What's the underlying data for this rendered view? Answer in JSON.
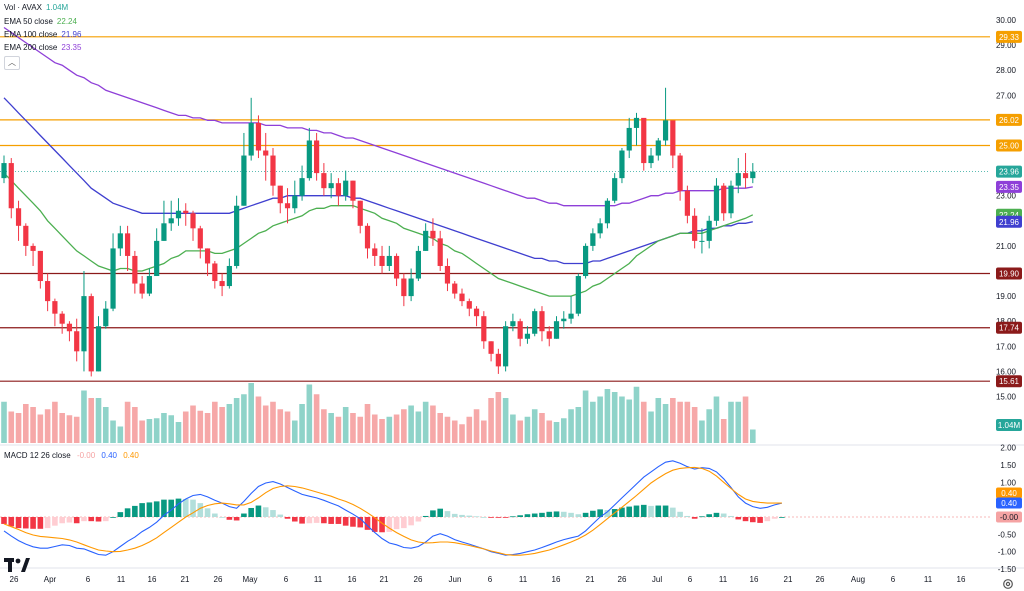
{
  "legend": {
    "vol": {
      "label": "Vol · AVAX",
      "value": "1.04M",
      "color": "#26a69a"
    },
    "ema50": {
      "label": "EMA 50 close",
      "value": "22.24",
      "color": "#4caf50"
    },
    "ema100": {
      "label": "EMA 100 close",
      "value": "21.96",
      "color": "#3f3fcf"
    },
    "ema200": {
      "label": "EMA 200 close",
      "value": "23.35",
      "color": "#8e3fd8"
    },
    "macd": {
      "label": "MACD 12 26 close",
      "hist": "-0.00",
      "macd": "0.40",
      "signal": "0.40",
      "hist_color": "#f5a3a3",
      "macd_color": "#2962ff",
      "signal_color": "#ff9800"
    }
  },
  "chart_data": {
    "type": "candlestick",
    "price_axis": {
      "ticks": [
        "30.00",
        "29.00",
        "28.00",
        "27.00",
        "25.00",
        "23.00",
        "22.00",
        "21.00",
        "19.00",
        "18.00",
        "17.00",
        "16.00",
        "15.00"
      ]
    },
    "macd_axis": {
      "ticks": [
        "2.00",
        "1.50",
        "1.00",
        "0.50",
        "-0.50",
        "-1.00",
        "-1.50"
      ]
    },
    "x_labels": [
      "26",
      "Apr",
      "6",
      "11",
      "16",
      "21",
      "26",
      "May",
      "6",
      "11",
      "16",
      "21",
      "26",
      "Jun",
      "6",
      "11",
      "16",
      "21",
      "26",
      "Jul",
      "6",
      "11",
      "16",
      "21",
      "26",
      "Aug",
      "6",
      "11",
      "16"
    ],
    "levels": [
      {
        "value": 29.33,
        "label": "29.33",
        "color": "#f59f00"
      },
      {
        "value": 26.02,
        "label": "26.02",
        "color": "#f59f00"
      },
      {
        "value": 25.0,
        "label": "25.00",
        "color": "#f59f00"
      },
      {
        "value": 19.9,
        "label": "19.90",
        "color": "#8b1a1a"
      },
      {
        "value": 17.74,
        "label": "17.74",
        "color": "#8b1a1a"
      },
      {
        "value": 15.61,
        "label": "15.61",
        "color": "#8b1a1a"
      }
    ],
    "price_badges": [
      {
        "value": 23.96,
        "label": "23.96",
        "color": "#26a69a"
      },
      {
        "value": 23.35,
        "label": "23.35",
        "color": "#8e3fd8"
      },
      {
        "value": 22.24,
        "label": "22.24",
        "color": "#4caf50"
      },
      {
        "value": 21.96,
        "label": "21.96",
        "color": "#3f3fcf"
      }
    ],
    "volume_badge": {
      "label": "1.04M",
      "color": "#26a69a"
    },
    "macd_badges": [
      {
        "value": 0.4,
        "label": "0.40",
        "color": "#ff9800"
      },
      {
        "value": 0.4,
        "label": "0.40",
        "color": "#2962ff"
      },
      {
        "value": 0.0,
        "label": "-0.00",
        "color": "#f5a3a3"
      }
    ],
    "closes": [
      24.3,
      22.5,
      21.8,
      21.0,
      20.8,
      19.6,
      18.8,
      18.3,
      17.9,
      17.6,
      16.8,
      19.0,
      16.0,
      17.8,
      18.5,
      20.9,
      21.5,
      20.6,
      19.5,
      19.1,
      19.8,
      21.2,
      21.9,
      22.1,
      22.4,
      22.3,
      21.7,
      20.9,
      20.3,
      19.6,
      19.4,
      20.2,
      22.6,
      24.6,
      25.9,
      24.8,
      24.6,
      23.4,
      22.7,
      22.5,
      23.0,
      23.7,
      25.2,
      23.9,
      23.3,
      23.5,
      23.0,
      23.6,
      22.8,
      21.8,
      20.9,
      20.6,
      20.2,
      20.6,
      19.7,
      19.0,
      19.7,
      20.8,
      21.6,
      21.3,
      20.2,
      19.5,
      19.1,
      18.8,
      18.5,
      18.2,
      17.2,
      16.7,
      16.2,
      17.8,
      18.0,
      17.3,
      17.5,
      18.4,
      17.6,
      17.3,
      18.0,
      18.1,
      18.3,
      19.8,
      21.0,
      21.5,
      21.9,
      22.8,
      23.7,
      24.8,
      25.7,
      26.1,
      24.3,
      24.6,
      25.2,
      26.0,
      24.6,
      23.2,
      22.2,
      21.2,
      21.2,
      22.0,
      23.4,
      22.3,
      23.4,
      23.9,
      23.7,
      23.96
    ],
    "ranges": [
      [
        23.5,
        24.6
      ],
      [
        22.1,
        24.5
      ],
      [
        21.2,
        22.8
      ],
      [
        20.6,
        21.9
      ],
      [
        20.2,
        21.1
      ],
      [
        19.3,
        20.8
      ],
      [
        18.4,
        19.9
      ],
      [
        17.8,
        18.9
      ],
      [
        17.5,
        18.4
      ],
      [
        17.2,
        18.0
      ],
      [
        16.4,
        18.1
      ],
      [
        16.0,
        20.0
      ],
      [
        15.8,
        19.1
      ],
      [
        16.0,
        18.2
      ],
      [
        17.7,
        18.8
      ],
      [
        18.4,
        21.5
      ],
      [
        20.6,
        21.8
      ],
      [
        20.0,
        21.8
      ],
      [
        19.1,
        20.8
      ],
      [
        18.9,
        19.8
      ],
      [
        19.0,
        20.1
      ],
      [
        19.8,
        21.7
      ],
      [
        21.2,
        22.8
      ],
      [
        21.6,
        22.8
      ],
      [
        21.8,
        22.9
      ],
      [
        21.8,
        22.7
      ],
      [
        21.2,
        22.4
      ],
      [
        20.5,
        21.8
      ],
      [
        19.8,
        20.9
      ],
      [
        19.3,
        20.4
      ],
      [
        19.0,
        19.9
      ],
      [
        19.3,
        20.5
      ],
      [
        20.1,
        23.0
      ],
      [
        22.6,
        25.5
      ],
      [
        24.4,
        26.9
      ],
      [
        24.5,
        26.2
      ],
      [
        23.6,
        25.5
      ],
      [
        23.0,
        24.9
      ],
      [
        22.3,
        23.4
      ],
      [
        21.9,
        23.3
      ],
      [
        22.3,
        23.6
      ],
      [
        22.8,
        24.2
      ],
      [
        23.6,
        25.7
      ],
      [
        23.6,
        25.5
      ],
      [
        23.0,
        24.3
      ],
      [
        22.9,
        23.9
      ],
      [
        22.6,
        23.7
      ],
      [
        22.8,
        24.0
      ],
      [
        22.5,
        23.6
      ],
      [
        21.5,
        22.8
      ],
      [
        20.5,
        21.9
      ],
      [
        20.2,
        21.1
      ],
      [
        19.9,
        21.0
      ],
      [
        20.0,
        21.0
      ],
      [
        19.4,
        20.7
      ],
      [
        18.6,
        19.9
      ],
      [
        18.8,
        20.1
      ],
      [
        19.6,
        21.0
      ],
      [
        20.8,
        21.9
      ],
      [
        21.0,
        22.1
      ],
      [
        20.0,
        21.6
      ],
      [
        19.2,
        20.5
      ],
      [
        18.9,
        19.6
      ],
      [
        18.6,
        19.3
      ],
      [
        18.2,
        18.9
      ],
      [
        17.8,
        18.6
      ],
      [
        16.9,
        18.4
      ],
      [
        16.4,
        17.2
      ],
      [
        15.9,
        16.9
      ],
      [
        16.0,
        18.0
      ],
      [
        17.6,
        18.3
      ],
      [
        17.0,
        18.1
      ],
      [
        17.1,
        17.8
      ],
      [
        17.4,
        18.5
      ],
      [
        17.2,
        18.6
      ],
      [
        17.0,
        17.8
      ],
      [
        17.3,
        18.2
      ],
      [
        17.7,
        18.4
      ],
      [
        17.9,
        19.0
      ],
      [
        18.2,
        19.9
      ],
      [
        19.7,
        21.1
      ],
      [
        20.8,
        21.7
      ],
      [
        21.3,
        22.1
      ],
      [
        21.7,
        22.9
      ],
      [
        22.7,
        23.9
      ],
      [
        23.5,
        24.9
      ],
      [
        24.5,
        26.1
      ],
      [
        25.0,
        26.3
      ],
      [
        24.0,
        25.8
      ],
      [
        24.1,
        24.9
      ],
      [
        24.4,
        25.3
      ],
      [
        25.0,
        27.3
      ],
      [
        24.1,
        25.2
      ],
      [
        22.8,
        24.7
      ],
      [
        21.9,
        23.4
      ],
      [
        20.9,
        22.5
      ],
      [
        20.7,
        21.7
      ],
      [
        20.9,
        22.2
      ],
      [
        21.8,
        23.7
      ],
      [
        22.0,
        23.5
      ],
      [
        22.1,
        23.6
      ],
      [
        23.1,
        24.5
      ],
      [
        23.3,
        24.7
      ],
      [
        23.5,
        24.3
      ]
    ],
    "ema50": [
      23.9,
      23.6,
      23.3,
      23.0,
      22.7,
      22.4,
      22.0,
      21.7,
      21.4,
      21.1,
      20.8,
      20.6,
      20.4,
      20.2,
      20.1,
      20.0,
      20.1,
      20.1,
      20.0,
      20.0,
      20.1,
      20.2,
      20.3,
      20.5,
      20.6,
      20.8,
      20.8,
      20.8,
      20.8,
      20.7,
      20.7,
      20.8,
      20.9,
      21.1,
      21.3,
      21.5,
      21.6,
      21.8,
      21.9,
      22.0,
      22.1,
      22.2,
      22.4,
      22.5,
      22.5,
      22.6,
      22.6,
      22.6,
      22.6,
      22.5,
      22.4,
      22.3,
      22.1,
      22.0,
      21.9,
      21.7,
      21.6,
      21.5,
      21.4,
      21.3,
      21.1,
      21.0,
      20.8,
      20.7,
      20.5,
      20.3,
      20.1,
      19.9,
      19.7,
      19.6,
      19.5,
      19.4,
      19.3,
      19.2,
      19.1,
      19.0,
      19.0,
      19.0,
      19.0,
      19.1,
      19.2,
      19.4,
      19.5,
      19.7,
      19.9,
      20.1,
      20.3,
      20.6,
      20.8,
      21.0,
      21.2,
      21.3,
      21.4,
      21.5,
      21.5,
      21.5,
      21.5,
      21.6,
      21.7,
      21.8,
      21.9,
      22.0,
      22.1,
      22.24
    ],
    "ema100": [
      26.9,
      26.6,
      26.3,
      26.0,
      25.7,
      25.4,
      25.1,
      24.8,
      24.5,
      24.2,
      23.9,
      23.6,
      23.3,
      23.1,
      22.9,
      22.7,
      22.6,
      22.5,
      22.4,
      22.3,
      22.3,
      22.3,
      22.3,
      22.3,
      22.3,
      22.3,
      22.3,
      22.3,
      22.3,
      22.3,
      22.3,
      22.3,
      22.4,
      22.5,
      22.6,
      22.7,
      22.8,
      22.9,
      22.9,
      23.0,
      23.0,
      23.0,
      23.0,
      23.0,
      23.0,
      23.0,
      23.0,
      23.0,
      22.9,
      22.9,
      22.8,
      22.7,
      22.6,
      22.5,
      22.4,
      22.3,
      22.2,
      22.1,
      22.0,
      21.9,
      21.8,
      21.7,
      21.6,
      21.5,
      21.4,
      21.3,
      21.2,
      21.1,
      21.0,
      20.9,
      20.8,
      20.7,
      20.6,
      20.5,
      20.5,
      20.4,
      20.4,
      20.3,
      20.3,
      20.3,
      20.3,
      20.4,
      20.4,
      20.5,
      20.6,
      20.7,
      20.8,
      20.9,
      21.0,
      21.1,
      21.2,
      21.3,
      21.4,
      21.5,
      21.5,
      21.6,
      21.6,
      21.7,
      21.7,
      21.8,
      21.8,
      21.9,
      21.9,
      21.96
    ],
    "ema200": [
      29.7,
      29.5,
      29.3,
      29.1,
      28.9,
      28.7,
      28.5,
      28.3,
      28.2,
      28.0,
      27.8,
      27.7,
      27.5,
      27.4,
      27.2,
      27.1,
      27.0,
      26.9,
      26.8,
      26.7,
      26.6,
      26.5,
      26.4,
      26.3,
      26.2,
      26.2,
      26.1,
      26.1,
      26.0,
      26.0,
      25.9,
      25.9,
      25.9,
      25.9,
      25.9,
      25.9,
      25.8,
      25.8,
      25.8,
      25.7,
      25.7,
      25.7,
      25.6,
      25.6,
      25.5,
      25.5,
      25.4,
      25.3,
      25.3,
      25.2,
      25.1,
      25.0,
      24.9,
      24.8,
      24.7,
      24.6,
      24.5,
      24.4,
      24.3,
      24.2,
      24.1,
      24.0,
      23.9,
      23.8,
      23.7,
      23.6,
      23.5,
      23.4,
      23.3,
      23.2,
      23.1,
      23.0,
      22.9,
      22.9,
      22.8,
      22.7,
      22.7,
      22.6,
      22.6,
      22.6,
      22.6,
      22.6,
      22.6,
      22.6,
      22.6,
      22.7,
      22.7,
      22.8,
      22.9,
      23.0,
      23.0,
      23.1,
      23.1,
      23.2,
      23.2,
      23.2,
      23.2,
      23.2,
      23.2,
      23.3,
      23.3,
      23.3,
      23.3,
      23.35
    ],
    "volumes": [
      0.55,
      0.42,
      0.4,
      0.52,
      0.48,
      0.38,
      0.45,
      0.55,
      0.4,
      0.37,
      0.35,
      0.7,
      0.6,
      0.6,
      0.48,
      0.3,
      0.22,
      0.55,
      0.48,
      0.3,
      0.32,
      0.33,
      0.4,
      0.37,
      0.28,
      0.42,
      0.5,
      0.43,
      0.4,
      0.55,
      0.48,
      0.52,
      0.6,
      0.65,
      0.8,
      0.62,
      0.5,
      0.55,
      0.45,
      0.42,
      0.3,
      0.52,
      0.78,
      0.65,
      0.45,
      0.4,
      0.35,
      0.48,
      0.4,
      0.35,
      0.52,
      0.38,
      0.32,
      0.35,
      0.38,
      0.45,
      0.5,
      0.42,
      0.55,
      0.5,
      0.4,
      0.35,
      0.3,
      0.25,
      0.35,
      0.45,
      0.3,
      0.6,
      0.68,
      0.6,
      0.38,
      0.3,
      0.35,
      0.45,
      0.4,
      0.3,
      0.28,
      0.33,
      0.45,
      0.48,
      0.7,
      0.55,
      0.62,
      0.72,
      0.68,
      0.62,
      0.58,
      0.75,
      0.55,
      0.42,
      0.6,
      0.52,
      0.6,
      0.55,
      0.55,
      0.48,
      0.3,
      0.45,
      0.62,
      0.32,
      0.55,
      0.55,
      0.62,
      0.18
    ],
    "macd": [
      -0.4,
      -0.55,
      -0.68,
      -0.78,
      -0.86,
      -0.9,
      -0.9,
      -0.85,
      -0.8,
      -0.82,
      -0.9,
      -0.92,
      -1.0,
      -1.08,
      -1.1,
      -1.0,
      -0.85,
      -0.7,
      -0.58,
      -0.42,
      -0.3,
      -0.15,
      0.05,
      0.2,
      0.38,
      0.52,
      0.62,
      0.65,
      0.58,
      0.48,
      0.4,
      0.3,
      0.25,
      0.45,
      0.68,
      0.88,
      0.98,
      1.02,
      0.95,
      0.85,
      0.75,
      0.65,
      0.6,
      0.55,
      0.48,
      0.4,
      0.32,
      0.2,
      0.08,
      -0.05,
      -0.25,
      -0.45,
      -0.62,
      -0.75,
      -0.8,
      -0.88,
      -0.9,
      -0.85,
      -0.72,
      -0.55,
      -0.48,
      -0.55,
      -0.65,
      -0.72,
      -0.78,
      -0.85,
      -0.92,
      -1.0,
      -1.05,
      -1.1,
      -1.08,
      -1.05,
      -1.0,
      -0.95,
      -0.88,
      -0.8,
      -0.72,
      -0.65,
      -0.6,
      -0.55,
      -0.4,
      -0.2,
      0.0,
      0.15,
      0.35,
      0.55,
      0.75,
      0.95,
      1.15,
      1.3,
      1.45,
      1.58,
      1.62,
      1.55,
      1.45,
      1.38,
      1.42,
      1.4,
      1.3,
      1.1,
      0.85,
      0.58,
      0.4,
      0.3,
      0.25,
      0.28,
      0.35,
      0.4
    ],
    "signal": [
      -0.2,
      -0.28,
      -0.36,
      -0.45,
      -0.52,
      -0.56,
      -0.58,
      -0.6,
      -0.62,
      -0.66,
      -0.72,
      -0.8,
      -0.88,
      -0.95,
      -0.98,
      -1.0,
      -0.99,
      -0.95,
      -0.9,
      -0.82,
      -0.72,
      -0.6,
      -0.45,
      -0.3,
      -0.15,
      0.0,
      0.12,
      0.25,
      0.33,
      0.38,
      0.4,
      0.38,
      0.35,
      0.35,
      0.42,
      0.55,
      0.7,
      0.82,
      0.88,
      0.9,
      0.88,
      0.84,
      0.78,
      0.72,
      0.66,
      0.6,
      0.52,
      0.45,
      0.36,
      0.25,
      0.12,
      -0.02,
      -0.18,
      -0.32,
      -0.45,
      -0.56,
      -0.66,
      -0.72,
      -0.75,
      -0.74,
      -0.72,
      -0.72,
      -0.74,
      -0.78,
      -0.82,
      -0.87,
      -0.92,
      -0.98,
      -1.03,
      -1.08,
      -1.1,
      -1.1,
      -1.08,
      -1.05,
      -1.0,
      -0.95,
      -0.88,
      -0.8,
      -0.72,
      -0.63,
      -0.52,
      -0.38,
      -0.22,
      -0.05,
      0.12,
      0.28,
      0.45,
      0.62,
      0.8,
      0.98,
      1.12,
      1.25,
      1.35,
      1.4,
      1.42,
      1.43,
      1.4,
      1.32,
      1.18,
      1.0,
      0.82,
      0.65,
      0.52,
      0.45,
      0.42,
      0.4,
      0.4,
      0.4
    ]
  }
}
